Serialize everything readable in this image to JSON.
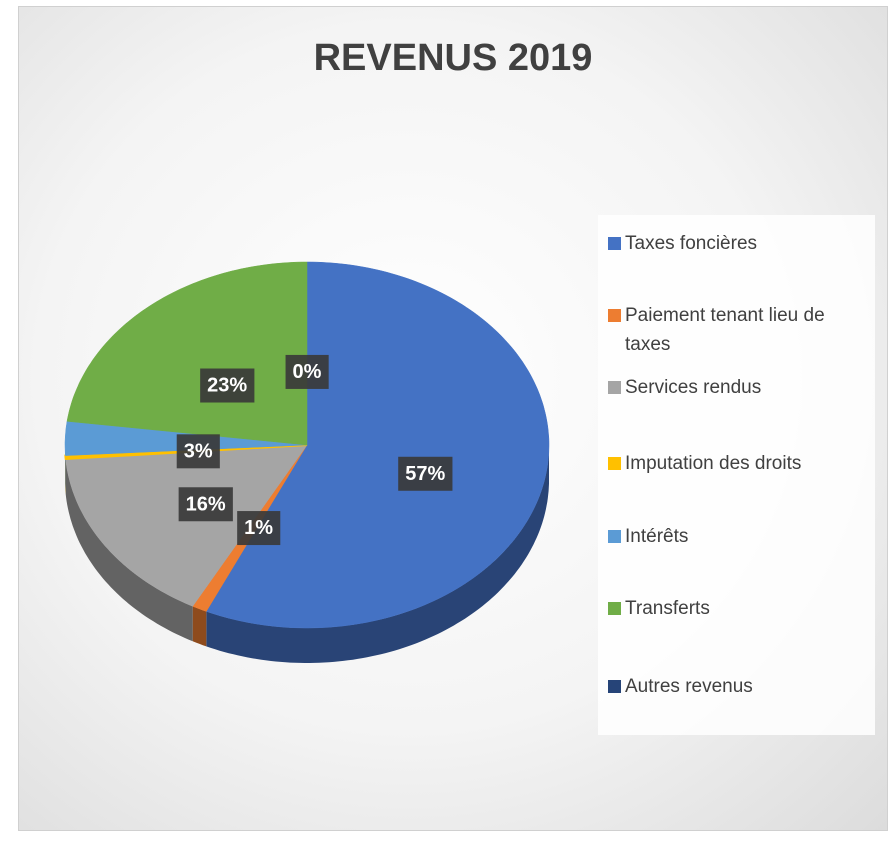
{
  "chart_data": {
    "type": "pie",
    "title": "REVENUS 2019",
    "categories": [
      "Taxes foncières",
      "Paiement tenant lieu de taxes",
      "Services rendus",
      "Imputation des droits",
      "Intérêts",
      "Transferts",
      "Autres revenus"
    ],
    "values": [
      57,
      1,
      16,
      0.3,
      3,
      23,
      0
    ],
    "value_labels": [
      "57%",
      "1%",
      "16%",
      null,
      "3%",
      "23%",
      "0%"
    ],
    "colors": [
      "#4472c4",
      "#ed7d31",
      "#a5a5a5",
      "#ffc000",
      "#5b9bd5",
      "#70ad47",
      "#264478"
    ],
    "legend": "right"
  }
}
